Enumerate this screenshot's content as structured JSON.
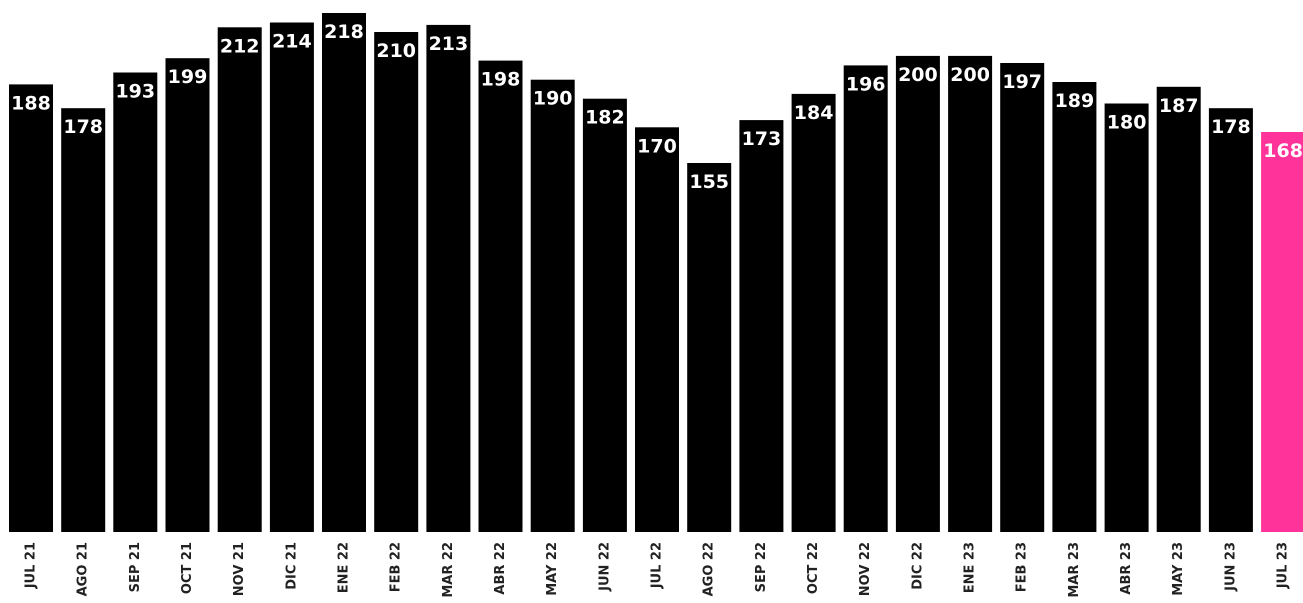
{
  "colors": {
    "bar": "#000000",
    "highlight": "#ff3399",
    "label": "#ffffff",
    "tick": "#222222"
  },
  "chart_data": {
    "type": "bar",
    "title": "",
    "xlabel": "",
    "ylabel": "",
    "ylim": [
      0,
      218
    ],
    "grid": false,
    "legend": "none",
    "categories": [
      "JUL 21",
      "AGO 21",
      "SEP 21",
      "OCT 21",
      "NOV 21",
      "DIC 21",
      "ENE 22",
      "FEB 22",
      "MAR 22",
      "ABR 22",
      "MAY 22",
      "JUN 22",
      "JUL 22",
      "AGO 22",
      "SEP 22",
      "OCT 22",
      "NOV 22",
      "DIC 22",
      "ENE 23",
      "FEB 23",
      "MAR 23",
      "ABR 23",
      "MAY 23",
      "JUN 23",
      "JUL 23"
    ],
    "values": [
      188,
      178,
      193,
      199,
      212,
      214,
      218,
      210,
      213,
      198,
      190,
      182,
      170,
      155,
      173,
      184,
      196,
      200,
      200,
      197,
      189,
      180,
      187,
      178,
      168
    ],
    "highlight_category": "JUL 23"
  }
}
